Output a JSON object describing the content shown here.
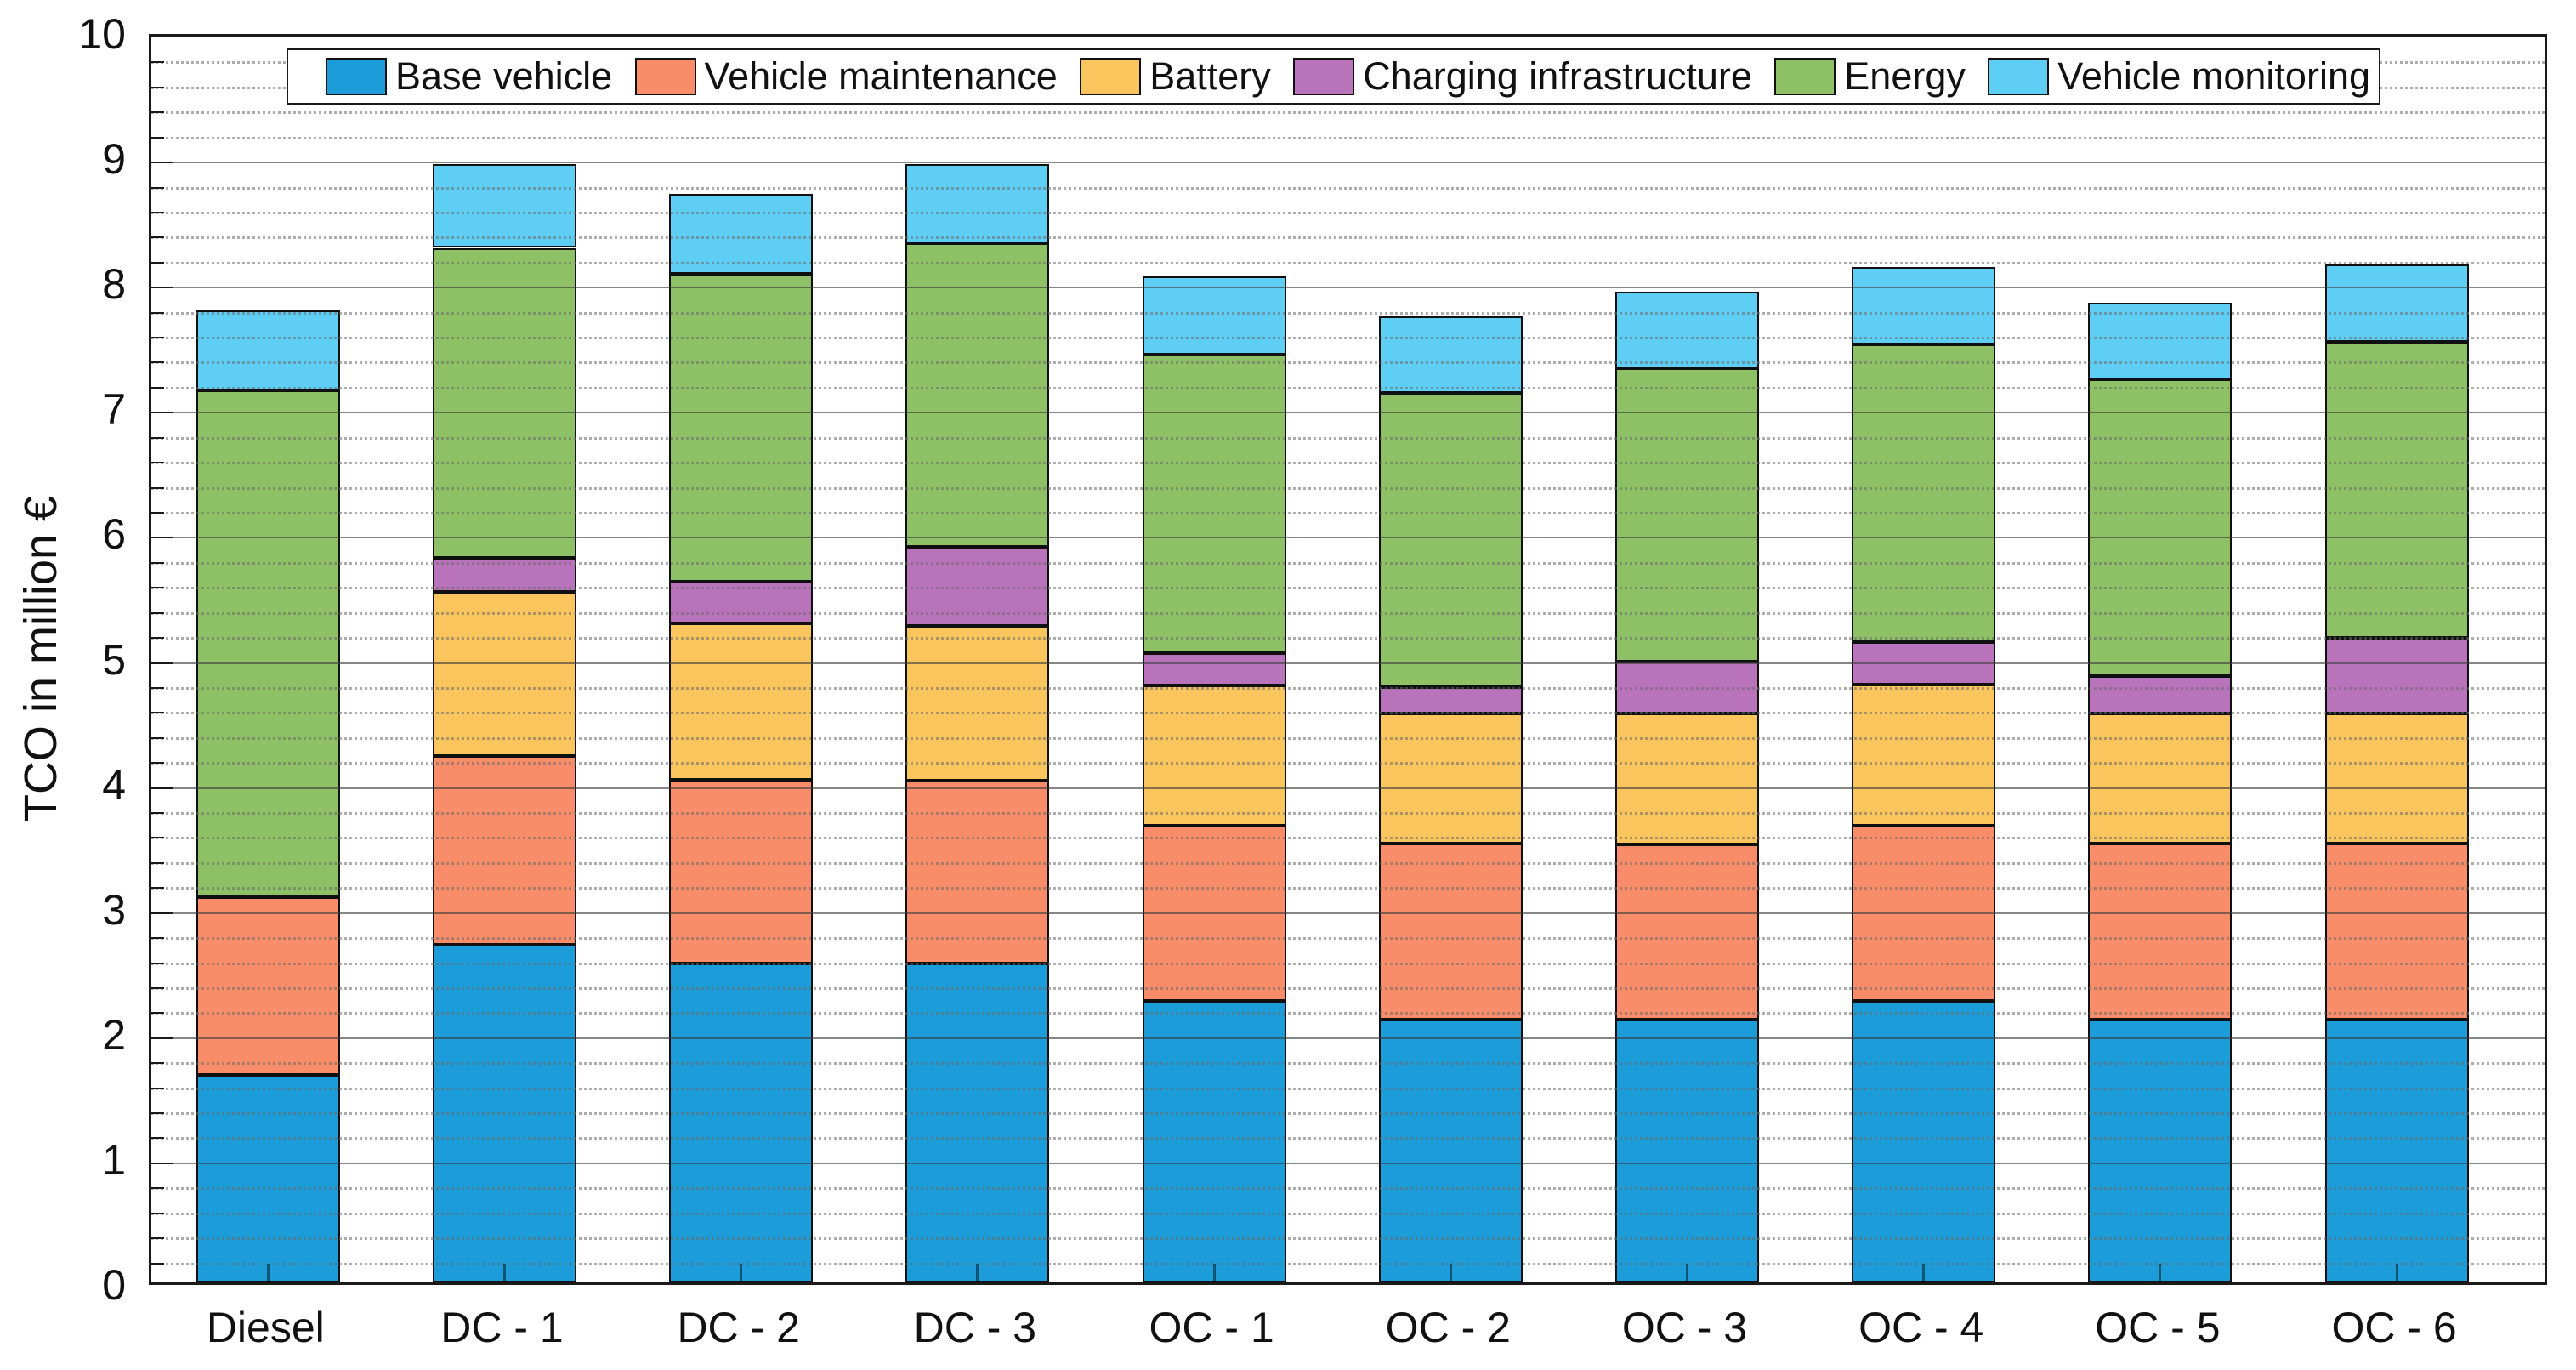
{
  "chart_data": {
    "type": "bar",
    "stacked": true,
    "orientation": "vertical",
    "categories": [
      "Diesel",
      "DC - 1",
      "DC - 2",
      "DC - 3",
      "OC - 1",
      "OC - 2",
      "OC - 3",
      "OC - 4",
      "OC - 5",
      "OC - 6"
    ],
    "series": [
      {
        "name": "Base vehicle",
        "color": "#1C9CD8",
        "values": [
          1.66,
          2.7,
          2.55,
          2.55,
          2.25,
          2.1,
          2.1,
          2.25,
          2.1,
          2.1
        ]
      },
      {
        "name": "Vehicle maintenance",
        "color": "#FA8D69",
        "values": [
          1.42,
          1.51,
          1.47,
          1.46,
          1.4,
          1.41,
          1.4,
          1.4,
          1.41,
          1.41
        ]
      },
      {
        "name": "Battery",
        "color": "#FBC55E",
        "values": [
          0.0,
          1.31,
          1.25,
          1.24,
          1.12,
          1.04,
          1.05,
          1.13,
          1.04,
          1.04
        ]
      },
      {
        "name": "Charging infrastructure",
        "color": "#B873BA",
        "values": [
          0.0,
          0.27,
          0.33,
          0.63,
          0.26,
          0.21,
          0.41,
          0.34,
          0.3,
          0.6
        ]
      },
      {
        "name": "Energy",
        "color": "#8EC166",
        "values": [
          4.05,
          2.48,
          2.46,
          2.43,
          2.39,
          2.35,
          2.35,
          2.38,
          2.37,
          2.37
        ]
      },
      {
        "name": "Vehicle monitoring",
        "color": "#5FCEF5",
        "values": [
          0.64,
          0.67,
          0.64,
          0.63,
          0.62,
          0.61,
          0.61,
          0.62,
          0.61,
          0.62
        ]
      }
    ],
    "totals": [
      7.77,
      8.94,
      8.7,
      8.94,
      8.04,
      7.72,
      7.92,
      8.12,
      7.83,
      8.14
    ],
    "title": "",
    "xlabel": "",
    "ylabel": "TCO in million €",
    "ylim": [
      0,
      10
    ],
    "ytick_step": 1,
    "yminor_step": 0.2,
    "yticks": [
      "0",
      "1",
      "2",
      "3",
      "4",
      "5",
      "6",
      "7",
      "8",
      "9",
      "10"
    ],
    "grid": {
      "major": "solid",
      "minor": "dotted",
      "layer": "top"
    },
    "legend_position": "top-inside"
  }
}
